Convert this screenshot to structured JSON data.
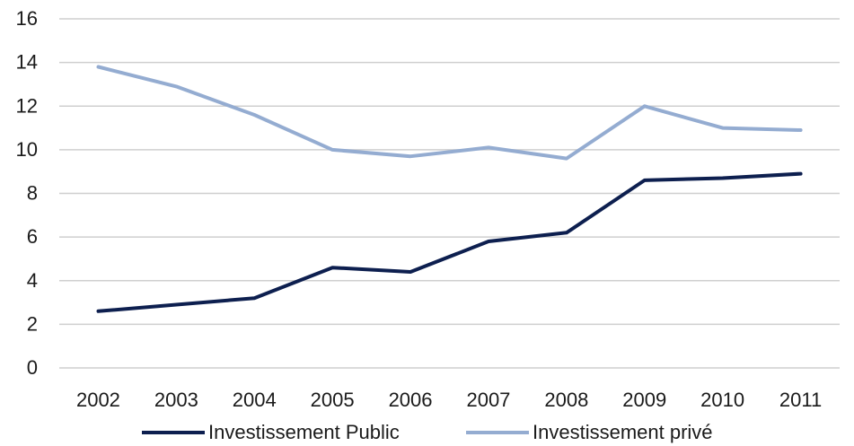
{
  "chart_data": {
    "type": "line",
    "title": "",
    "xlabel": "",
    "ylabel": "",
    "x": [
      "2002",
      "2003",
      "2004",
      "2005",
      "2006",
      "2007",
      "2008",
      "2009",
      "2010",
      "2011"
    ],
    "ylim": [
      0,
      16
    ],
    "yticks": [
      "0",
      "2",
      "4",
      "6",
      "8",
      "10",
      "12",
      "14",
      "16"
    ],
    "grid": true,
    "legend_position": "bottom",
    "series": [
      {
        "name": "Investissement Public",
        "color": "#0d1f4f",
        "values": [
          2.6,
          2.9,
          3.2,
          4.6,
          4.4,
          5.8,
          6.2,
          8.6,
          8.7,
          8.9
        ]
      },
      {
        "name": "Investissement privé",
        "color": "#94acd1",
        "values": [
          13.8,
          12.9,
          11.6,
          10.0,
          9.7,
          10.1,
          9.6,
          12.0,
          11.0,
          10.9
        ]
      }
    ]
  }
}
